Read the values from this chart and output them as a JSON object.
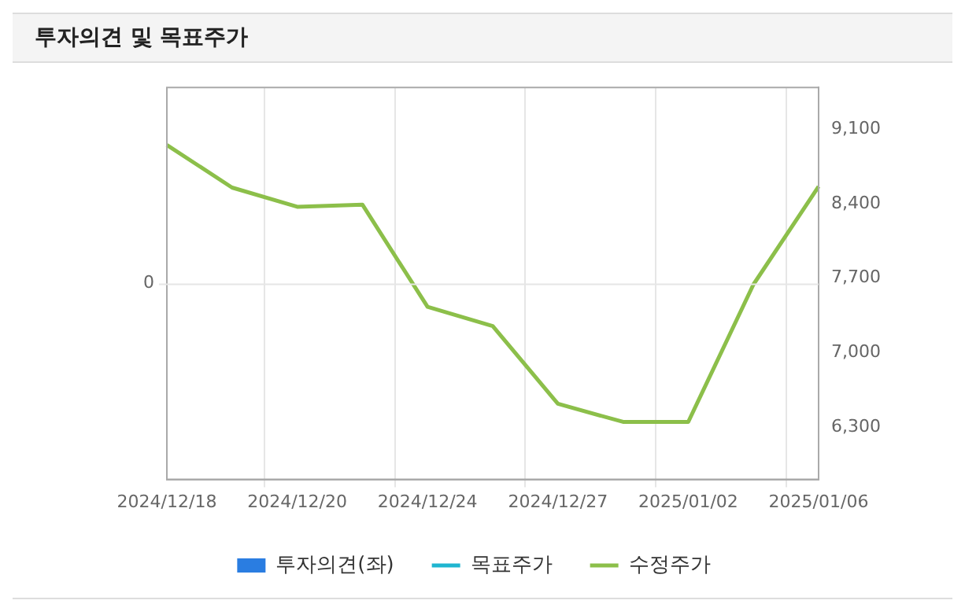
{
  "chart_data": {
    "type": "line",
    "title": "투자의견 및 목표주가",
    "categories": [
      "2024/12/18",
      null,
      "2024/12/20",
      null,
      "2024/12/24",
      null,
      "2024/12/27",
      null,
      "2025/01/02",
      null,
      "2025/01/06"
    ],
    "series": [
      {
        "name": "투자의견(좌)",
        "type": "bar",
        "color": "#2a7de1",
        "values": [
          null,
          null,
          null,
          null,
          null,
          null,
          null,
          null,
          null,
          null,
          null
        ]
      },
      {
        "name": "목표주가",
        "axis": "y2",
        "color": "#1fb5d0",
        "values": [
          null,
          null,
          null,
          null,
          null,
          null,
          null,
          null,
          null,
          null,
          null
        ]
      },
      {
        "name": "수정주가",
        "axis": "y2",
        "color": "#8cbf4a",
        "values": [
          8950,
          8550,
          8370,
          8390,
          7430,
          7250,
          6520,
          6350,
          6350,
          7640,
          8560
        ]
      }
    ],
    "annotations": [
      "0"
    ],
    "y2lim": [
      5810,
      9490
    ],
    "y2ticks": [
      {
        "value": 9100,
        "label": "9,100"
      },
      {
        "value": 8400,
        "label": "8,400"
      },
      {
        "value": 7700,
        "label": "7,700"
      },
      {
        "value": 7000,
        "label": "7,000"
      },
      {
        "value": 6300,
        "label": "6,300"
      }
    ],
    "grid": true,
    "legend": "bottom",
    "marker": "none",
    "line_style": "solid"
  }
}
